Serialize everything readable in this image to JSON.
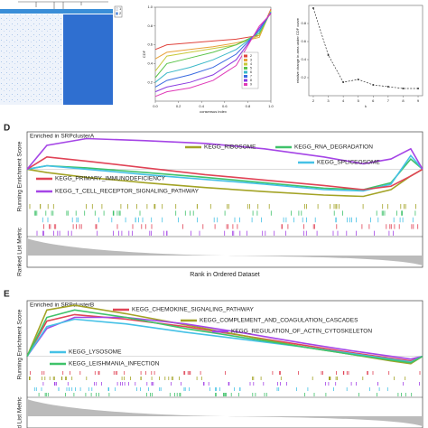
{
  "chart_data": [
    {
      "type": "heatmap",
      "legend": [
        "1",
        "2"
      ]
    },
    {
      "type": "line",
      "ylabel": "CDF",
      "xlabel": "consensus index",
      "x": [
        0,
        0.1,
        0.3,
        0.5,
        0.7,
        0.9,
        1
      ],
      "xlim": [
        0,
        1
      ],
      "ylim": [
        0,
        1
      ],
      "xticks": [
        {
          "value": 0,
          "label": "0.0"
        },
        0.2,
        0.4,
        0.6,
        0.8,
        {
          "value": 1,
          "label": "1.0"
        }
      ],
      "yticks": [
        0.2,
        0.4,
        0.6,
        0.8,
        {
          "value": 1,
          "label": "1.0"
        }
      ],
      "series": [
        {
          "name": "2",
          "color": "#e0433c",
          "values": [
            0.55,
            0.6,
            0.62,
            0.64,
            0.66,
            0.7,
            0.98
          ]
        },
        {
          "name": "3",
          "color": "#e8a23a",
          "values": [
            0.45,
            0.52,
            0.55,
            0.58,
            0.62,
            0.68,
            0.97
          ]
        },
        {
          "name": "4",
          "color": "#c8c83a",
          "values": [
            0.32,
            0.48,
            0.52,
            0.56,
            0.6,
            0.7,
            0.96
          ]
        },
        {
          "name": "5",
          "color": "#5bc44a",
          "values": [
            0.25,
            0.4,
            0.46,
            0.52,
            0.6,
            0.72,
            0.95
          ]
        },
        {
          "name": "6",
          "color": "#3ab8c8",
          "values": [
            0.2,
            0.3,
            0.36,
            0.44,
            0.55,
            0.74,
            0.95
          ]
        },
        {
          "name": "7",
          "color": "#3a6ae0",
          "values": [
            0.15,
            0.22,
            0.28,
            0.36,
            0.5,
            0.76,
            0.94
          ]
        },
        {
          "name": "8",
          "color": "#8a3ae0",
          "values": [
            0.1,
            0.15,
            0.2,
            0.28,
            0.44,
            0.78,
            0.94
          ]
        },
        {
          "name": "9",
          "color": "#e03ab8",
          "values": [
            0.05,
            0.1,
            0.14,
            0.22,
            0.38,
            0.8,
            0.93
          ]
        }
      ]
    },
    {
      "type": "line",
      "ylabel": "relative change in area under CDF curve",
      "xlabel": "k",
      "x": [
        2,
        3,
        4,
        5,
        6,
        7,
        8,
        9
      ],
      "xlim": [
        1.7,
        9.3
      ],
      "ylim": [
        0,
        1
      ],
      "xticks": [
        2,
        3,
        4,
        5,
        6,
        7,
        8,
        9
      ],
      "yticks": [
        0.2,
        0.4,
        0.6,
        0.8
      ],
      "series": [
        {
          "name": "delta",
          "color": "#333333",
          "values": [
            0.97,
            0.45,
            0.15,
            0.18,
            0.12,
            0.1,
            0.08,
            0.08
          ]
        }
      ]
    },
    {
      "type": "gsea",
      "panel": "D",
      "title": "Enriched in SRPclusterA",
      "ylabel": "Running Enrichment Score",
      "ylabel2": "Ranked List Metric",
      "xlabel": "Rank in Ordered Dataset",
      "x": [
        0,
        0.05,
        0.15,
        0.3,
        0.45,
        0.6,
        0.75,
        0.85,
        0.92,
        0.97,
        1
      ],
      "xlim": [
        0,
        1
      ],
      "ylim": [
        -0.5,
        0.55
      ],
      "series": [
        {
          "name": "KEGG_RIBOSOME",
          "color": "#a3a325",
          "values": [
            0,
            -0.05,
            -0.12,
            -0.2,
            -0.27,
            -0.33,
            -0.38,
            -0.4,
            -0.3,
            -0.1,
            0
          ]
        },
        {
          "name": "KEGG_RNA_DEGRADATION",
          "color": "#3fc26a",
          "values": [
            0,
            0.05,
            0.02,
            -0.05,
            -0.12,
            -0.2,
            -0.28,
            -0.3,
            -0.2,
            0.15,
            0
          ]
        },
        {
          "name": "KEGG_SPLICEOSOME",
          "color": "#45c1e6",
          "values": [
            0,
            0.05,
            0.0,
            -0.08,
            -0.15,
            -0.22,
            -0.3,
            -0.32,
            -0.22,
            0.2,
            0
          ]
        },
        {
          "name": "KEGG_PRIMARY_IMMUNODEFICIENCY",
          "color": "#e04356",
          "values": [
            0,
            0.18,
            0.12,
            0.02,
            -0.08,
            -0.16,
            -0.24,
            -0.3,
            -0.25,
            -0.1,
            0
          ]
        },
        {
          "name": "KEGG_T_CELL_RECEPTOR_SIGNALING_PATHWAY",
          "color": "#a545e6",
          "values": [
            0,
            0.35,
            0.45,
            0.42,
            0.38,
            0.3,
            0.18,
            0.08,
            0.15,
            0.3,
            0
          ]
        }
      ]
    },
    {
      "type": "gsea",
      "panel": "E",
      "title": "Enriched in SRPclusterB",
      "ylabel": "Running Enrichment Score",
      "ylabel2": "d List Metric",
      "x": [
        0,
        0.05,
        0.12,
        0.25,
        0.4,
        0.55,
        0.7,
        0.82,
        0.92,
        0.97,
        1
      ],
      "xlim": [
        0,
        1
      ],
      "ylim": [
        -0.15,
        0.6
      ],
      "series": [
        {
          "name": "KEGG_CHEMOKINE_SIGNALING_PATHWAY",
          "color": "#e04356",
          "values": [
            0,
            0.38,
            0.45,
            0.4,
            0.32,
            0.22,
            0.12,
            0.04,
            -0.02,
            -0.05,
            0
          ]
        },
        {
          "name": "KEGG_COMPLEMENT_AND_COAGULATION_CASCADES",
          "color": "#a3a325",
          "values": [
            0,
            0.5,
            0.55,
            0.46,
            0.34,
            0.22,
            0.1,
            0.02,
            -0.05,
            -0.08,
            0
          ]
        },
        {
          "name": "KEGG_REGULATION_OF_ACTIN_CYTOSKELETON",
          "color": "#a545e6",
          "values": [
            0,
            0.3,
            0.42,
            0.42,
            0.35,
            0.25,
            0.14,
            0.06,
            0.0,
            -0.03,
            0
          ]
        },
        {
          "name": "KEGG_LYSOSOME",
          "color": "#45c1e6",
          "values": [
            0,
            0.32,
            0.4,
            0.35,
            0.26,
            0.18,
            0.1,
            0.03,
            -0.03,
            -0.06,
            0
          ]
        },
        {
          "name": "KEGG_LEISHMANIA_INFECTION",
          "color": "#3fc26a",
          "values": [
            0,
            0.42,
            0.5,
            0.42,
            0.3,
            0.2,
            0.1,
            0.02,
            -0.04,
            -0.07,
            0
          ]
        }
      ]
    }
  ]
}
